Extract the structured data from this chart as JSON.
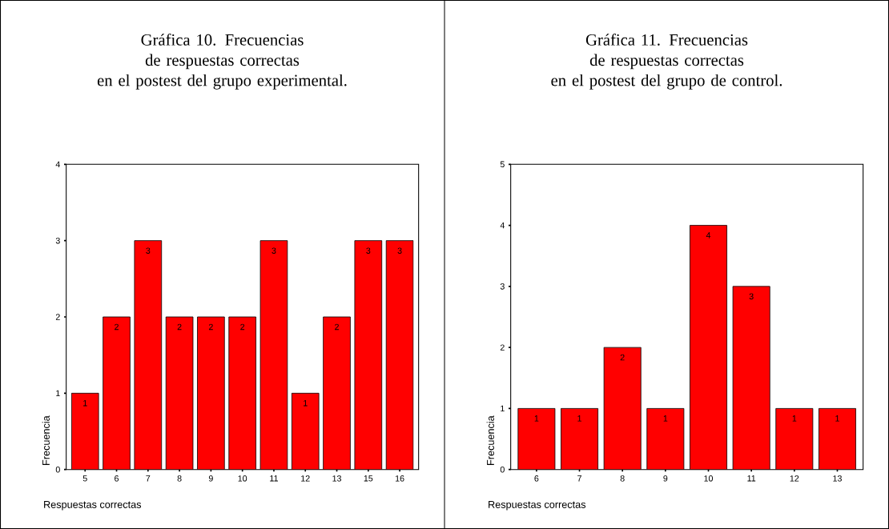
{
  "chart_data": [
    {
      "type": "bar",
      "title": "Gráfica 10. Frecuencias de respuestas correctas",
      "subtitle": "en el postest del grupo experimental.",
      "xlabel": "Respuestas correctas",
      "ylabel": "Frecuencia",
      "categories": [
        "5",
        "6",
        "7",
        "8",
        "9",
        "10",
        "11",
        "12",
        "13",
        "15",
        "16"
      ],
      "values": [
        1,
        2,
        3,
        2,
        2,
        2,
        3,
        1,
        2,
        3,
        3
      ],
      "color": "#ff0000",
      "ylim": [
        0,
        4
      ],
      "yticks": [
        0,
        1,
        2,
        3,
        4
      ],
      "data_labels": true
    },
    {
      "type": "bar",
      "title": "Gráfica 11. Frecuencias de respuestas correctas",
      "subtitle": "en el postest del grupo de control.",
      "xlabel": "Respuestas correctas",
      "ylabel": "Frecuencia",
      "categories": [
        "6",
        "7",
        "8",
        "9",
        "10",
        "11",
        "12",
        "13"
      ],
      "values": [
        1,
        1,
        2,
        1,
        4,
        3,
        1,
        1
      ],
      "color": "#ff0000",
      "ylim": [
        0,
        5
      ],
      "yticks": [
        0,
        1,
        2,
        3,
        4,
        5
      ],
      "data_labels": true
    }
  ]
}
